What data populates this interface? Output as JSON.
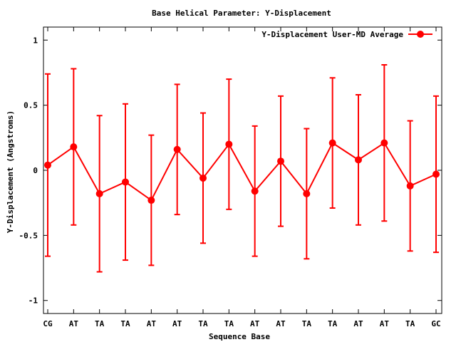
{
  "chart_data": {
    "type": "line",
    "title": "Base  Helical Parameter: Y-Displacement",
    "xlabel": "Sequence Base",
    "ylabel": "Y-Displacement (Angstroms)",
    "ylim": [
      -1.1,
      1.1
    ],
    "yticks": [
      {
        "value": 1,
        "label": "1"
      },
      {
        "value": 0.5,
        "label": "0.5"
      },
      {
        "value": 0,
        "label": "0"
      },
      {
        "value": -0.5,
        "label": "-0.5"
      },
      {
        "value": -1,
        "label": "-1"
      }
    ],
    "categories": [
      "CG",
      "AT",
      "TA",
      "TA",
      "AT",
      "AT",
      "TA",
      "TA",
      "AT",
      "AT",
      "TA",
      "TA",
      "AT",
      "AT",
      "TA",
      "GC"
    ],
    "legend_position": "top-right",
    "grid": false,
    "series": [
      {
        "name": "Y-Displacement User-MD Average",
        "color": "#ff0000",
        "values": [
          0.04,
          0.18,
          -0.18,
          -0.09,
          -0.23,
          0.16,
          -0.06,
          0.2,
          -0.16,
          0.07,
          -0.18,
          0.21,
          0.08,
          0.21,
          -0.12,
          -0.03
        ],
        "err_low": [
          -0.66,
          -0.42,
          -0.78,
          -0.69,
          -0.73,
          -0.34,
          -0.56,
          -0.3,
          -0.66,
          -0.43,
          -0.68,
          -0.29,
          -0.42,
          -0.39,
          -0.62,
          -0.63
        ],
        "err_high": [
          0.74,
          0.78,
          0.42,
          0.51,
          0.27,
          0.66,
          0.44,
          0.7,
          0.34,
          0.57,
          0.32,
          0.71,
          0.58,
          0.81,
          0.38,
          0.57
        ]
      }
    ]
  }
}
